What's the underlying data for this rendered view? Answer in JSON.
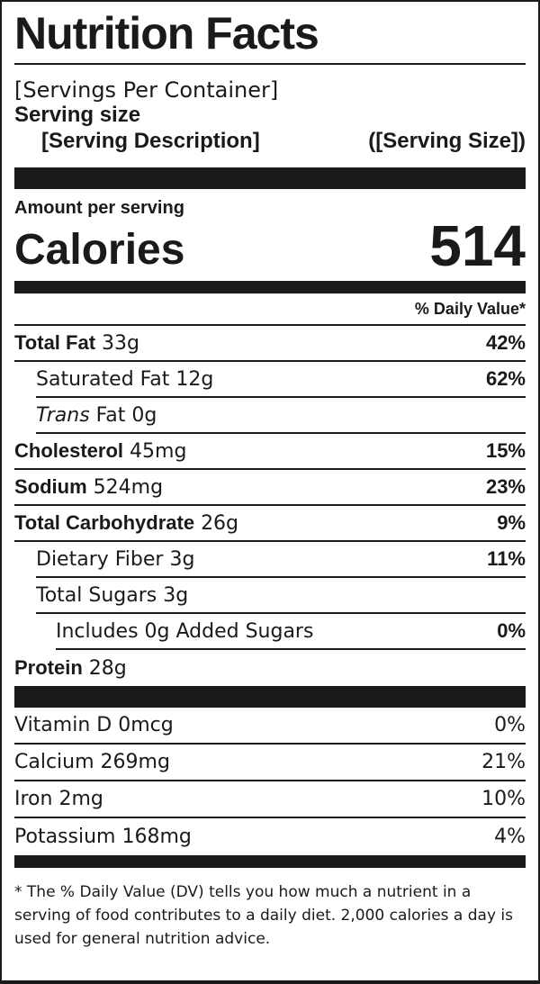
{
  "title": "Nutrition Facts",
  "servings_per_container": "[Servings Per Container]",
  "serving_size_label": "Serving size",
  "serving_description": "[Serving Description]",
  "serving_size": "([Serving Size])",
  "amount_per_serving": "Amount per serving",
  "calories_label": "Calories",
  "calories_value": "514",
  "daily_value_header": "% Daily Value*",
  "nutrients": [
    {
      "name": "Total Fat",
      "amount": "33g",
      "dv": "42%"
    },
    {
      "name": "Saturated Fat",
      "amount": "12g",
      "dv": "62%"
    },
    {
      "name_italic": "Trans",
      "name": "Fat",
      "amount": "0g",
      "dv": ""
    },
    {
      "name": "Cholesterol",
      "amount": "45mg",
      "dv": "15%"
    },
    {
      "name": "Sodium",
      "amount": "524mg",
      "dv": "23%"
    },
    {
      "name": "Total Carbohydrate",
      "amount": "26g",
      "dv": "9%"
    },
    {
      "name": "Dietary Fiber",
      "amount": "3g",
      "dv": "11%"
    },
    {
      "name": "Total Sugars",
      "amount": "3g",
      "dv": ""
    },
    {
      "name": "Includes 0g Added Sugars",
      "amount": "",
      "dv": "0%"
    },
    {
      "name": "Protein",
      "amount": "28g",
      "dv": ""
    }
  ],
  "vitamins": [
    {
      "name": "Vitamin D",
      "amount": "0mcg",
      "dv": "0%"
    },
    {
      "name": "Calcium",
      "amount": "269mg",
      "dv": "21%"
    },
    {
      "name": "Iron",
      "amount": "2mg",
      "dv": "10%"
    },
    {
      "name": "Potassium",
      "amount": "168mg",
      "dv": "4%"
    }
  ],
  "footnote": "* The % Daily Value (DV) tells you how much a nutrient in a serving of food contributes to a daily diet. 2,000 calories a day is used for general nutrition advice."
}
